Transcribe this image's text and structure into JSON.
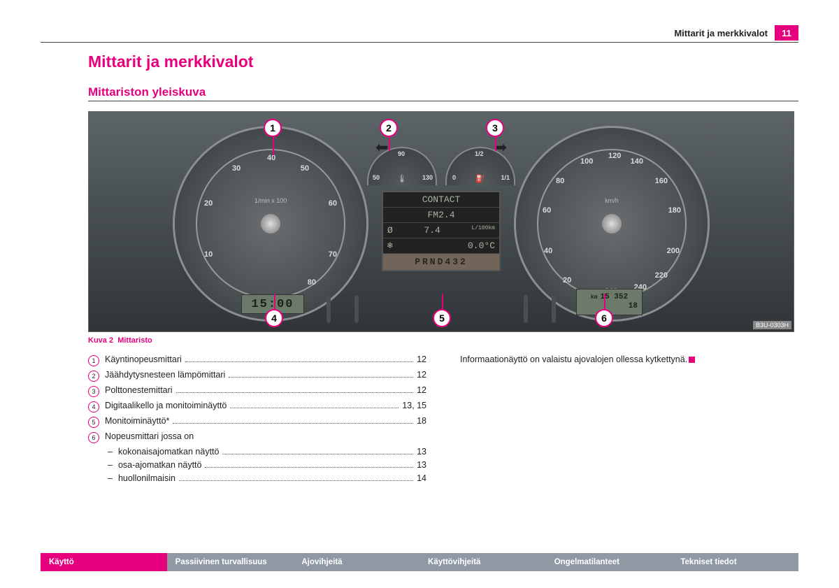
{
  "header": {
    "title": "Mittarit ja merkkivalot",
    "page_number": "11"
  },
  "chapter_title": "Mittarit ja merkkivalot",
  "section_title": "Mittariston yleiskuva",
  "figure": {
    "caption_prefix": "Kuva 2",
    "caption_text": "Mittaristo",
    "image_code": "B3U-0303H",
    "tach": {
      "unit": "1/min x 100",
      "ticks": [
        "10",
        "20",
        "30",
        "40",
        "50",
        "60",
        "70",
        "80"
      ]
    },
    "speedo": {
      "unit": "km/h",
      "ticks": [
        "20",
        "40",
        "60",
        "80",
        "100",
        "120",
        "140",
        "160",
        "180",
        "200",
        "220",
        "240",
        "260"
      ]
    },
    "clock": "15:00",
    "odometer_total": "15 352",
    "odometer_trip": "18",
    "odometer_unit": "km",
    "temp_gauge": {
      "low": "50",
      "mid": "90",
      "high": "130"
    },
    "fuel_gauge": {
      "empty": "0",
      "half": "1/2",
      "full": "1/1"
    },
    "mfd": {
      "line1": "CONTACT",
      "line2": "FM2.4",
      "consumption_icon": "Ø",
      "consumption_value": "7.4",
      "consumption_unit": "L/100km",
      "temp_icon": "❄",
      "temp_value": "0.0°C",
      "gear": "PRND432"
    },
    "callouts": [
      "1",
      "2",
      "3",
      "4",
      "5",
      "6"
    ]
  },
  "legend": [
    {
      "num": "1",
      "label": "Käyntinopeusmittari",
      "page": "12"
    },
    {
      "num": "2",
      "label": "Jäähdytysnesteen lämpömittari",
      "page": "12"
    },
    {
      "num": "3",
      "label": "Polttonestemittari",
      "page": "12"
    },
    {
      "num": "4",
      "label": "Digitaalikello ja monitoiminäyttö",
      "page": "13, 15"
    },
    {
      "num": "5",
      "label": "Monitoiminäyttö*",
      "page": "18"
    },
    {
      "num": "6",
      "label": "Nopeusmittari jossa on",
      "page": "",
      "subs": [
        {
          "label": "kokonaisajomatkan näyttö",
          "page": "13"
        },
        {
          "label": "osa-ajomatkan näyttö",
          "page": "13"
        },
        {
          "label": "huollonilmaisin",
          "page": "14"
        }
      ]
    }
  ],
  "note": "Informaationäyttö on valaistu ajovalojen ollessa kytkettynä.",
  "tabs": [
    "Käyttö",
    "Passiivinen turvallisuus",
    "Ajovihjeitä",
    "Käyttövihjeitä",
    "Ongelmatilanteet",
    "Tekniset tiedot"
  ],
  "colors": {
    "accent": "#e6007e",
    "tab_inactive": "#8e99a4"
  }
}
